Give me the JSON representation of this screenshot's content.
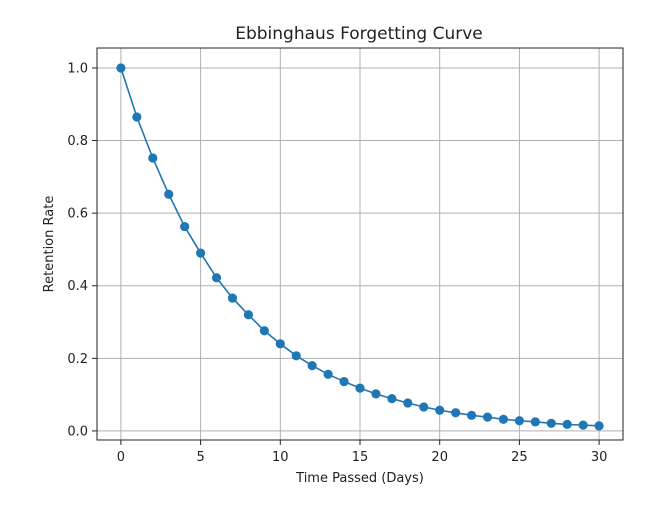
{
  "chart_data": {
    "type": "line",
    "title": "Ebbinghaus Forgetting Curve",
    "xlabel": "Time Passed (Days)",
    "ylabel": "Retention Rate",
    "xlim": [
      -1.5,
      31.5
    ],
    "ylim": [
      -0.025,
      1.055
    ],
    "xticks": [
      0,
      5,
      10,
      15,
      20,
      25,
      30
    ],
    "yticks": [
      0.0,
      0.2,
      0.4,
      0.6,
      0.8,
      1.0
    ],
    "xtick_labels": [
      "0",
      "5",
      "10",
      "15",
      "20",
      "25",
      "30"
    ],
    "ytick_labels": [
      "0.0",
      "0.2",
      "0.4",
      "0.6",
      "0.8",
      "1.0"
    ],
    "grid": true,
    "line_color": "#1f77b4",
    "series": [
      {
        "x": [
          0,
          1,
          2,
          3,
          4,
          5,
          6,
          7,
          8,
          9,
          10,
          11,
          12,
          13,
          14,
          15,
          16,
          17,
          18,
          19,
          20,
          21,
          22,
          23,
          24,
          25,
          26,
          27,
          28,
          29,
          30
        ],
        "y": [
          1.0,
          0.865,
          0.752,
          0.652,
          0.563,
          0.49,
          0.422,
          0.366,
          0.32,
          0.276,
          0.24,
          0.207,
          0.18,
          0.156,
          0.136,
          0.118,
          0.102,
          0.089,
          0.077,
          0.066,
          0.057,
          0.05,
          0.043,
          0.038,
          0.032,
          0.028,
          0.025,
          0.021,
          0.018,
          0.016,
          0.014
        ]
      }
    ]
  }
}
